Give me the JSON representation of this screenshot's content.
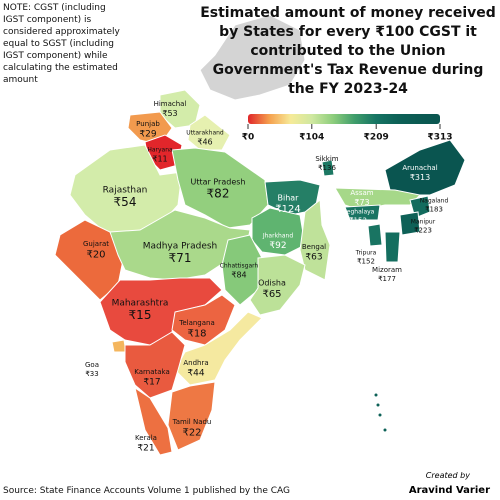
{
  "title": "Estimated amount of money received by States for every ₹100 CGST it contributed to the Union Government's Tax Revenue during the FY 2023-24",
  "note": "NOTE: CGST (including IGST component) is considered approximately equal to SGST (including IGST component) while calculating the estimated amount",
  "source": "Source: State Finance Accounts Volume 1 published by the CAG",
  "credit": {
    "label": "Created by",
    "name": "Aravind Varier"
  },
  "colorbar": {
    "lim": [
      0,
      313
    ],
    "ticks": [
      {
        "value": 0,
        "label": "₹0"
      },
      {
        "value": 104,
        "label": "₹104"
      },
      {
        "value": 209,
        "label": "₹209"
      },
      {
        "value": 313,
        "label": "₹313"
      }
    ],
    "colors": [
      "#e0262a",
      "#f5a04e",
      "#f6ea98",
      "#cfe8a0",
      "#8ccd7c",
      "#3f9d6b",
      "#167463",
      "#0d6157",
      "#0b5a52",
      "#0a5550"
    ]
  },
  "states": [
    {
      "name": "Himachal",
      "value": 53,
      "value_label": "₹53",
      "color": "#d3ecaa"
    },
    {
      "name": "Punjab",
      "value": 29,
      "value_label": "₹29",
      "color": "#f29a4e"
    },
    {
      "name": "Uttarakhand",
      "value": 46,
      "value_label": "₹46",
      "color": "#e6f0b0"
    },
    {
      "name": "Haryana",
      "value": 11,
      "value_label": "₹11",
      "color": "#e2262b"
    },
    {
      "name": "Rajasthan",
      "value": 54,
      "value_label": "₹54",
      "color": "#d3ecaa"
    },
    {
      "name": "Uttar Pradesh",
      "value": 82,
      "value_label": "₹82",
      "color": "#93cf7e"
    },
    {
      "name": "Bihar",
      "value": 124,
      "value_label": "₹124",
      "color": "#257f66"
    },
    {
      "name": "Sikkim",
      "value": 136,
      "value_label": "₹136",
      "color": "#1c7863"
    },
    {
      "name": "Arunachal",
      "value": 313,
      "value_label": "₹313",
      "color": "#0a5550"
    },
    {
      "name": "Assam",
      "value": 73,
      "value_label": "₹73",
      "color": "#a6d889"
    },
    {
      "name": "Nagaland",
      "value": 183,
      "value_label": "₹183",
      "color": "#136c5e"
    },
    {
      "name": "Meghalaya",
      "value": 152,
      "value_label": "₹152",
      "color": "#197462"
    },
    {
      "name": "Manipur",
      "value": 223,
      "value_label": "₹223",
      "color": "#0e6157"
    },
    {
      "name": "Tripura",
      "value": 152,
      "value_label": "₹152",
      "color": "#197462"
    },
    {
      "name": "Mizoram",
      "value": 177,
      "value_label": "₹177",
      "color": "#146e5f"
    },
    {
      "name": "Gujarat",
      "value": 20,
      "value_label": "₹20",
      "color": "#ec6a3c"
    },
    {
      "name": "Madhya Pradesh",
      "value": 71,
      "value_label": "₹71",
      "color": "#aad98b"
    },
    {
      "name": "Jharkhand",
      "value": 92,
      "value_label": "₹92",
      "color": "#5fb470"
    },
    {
      "name": "Bengal",
      "value": 63,
      "value_label": "₹63",
      "color": "#bfe29a"
    },
    {
      "name": "Chhattisgarh",
      "value": 84,
      "value_label": "₹84",
      "color": "#86c97a"
    },
    {
      "name": "Odisha",
      "value": 65,
      "value_label": "₹65",
      "color": "#bce198"
    },
    {
      "name": "Maharashtra",
      "value": 15,
      "value_label": "₹15",
      "color": "#e84a3e"
    },
    {
      "name": "Telangana",
      "value": 18,
      "value_label": "₹18",
      "color": "#ec6441"
    },
    {
      "name": "Goa",
      "value": 33,
      "value_label": "₹33",
      "color": "#f4b65e"
    },
    {
      "name": "Andhra",
      "value": 44,
      "value_label": "₹44",
      "color": "#f5e9a0"
    },
    {
      "name": "Karnataka",
      "value": 17,
      "value_label": "₹17",
      "color": "#e95a3f"
    },
    {
      "name": "Tamil Nadu",
      "value": 22,
      "value_label": "₹22",
      "color": "#ee7844"
    },
    {
      "name": "Kerala",
      "value": 21,
      "value_label": "₹21",
      "color": "#ed7041"
    }
  ]
}
